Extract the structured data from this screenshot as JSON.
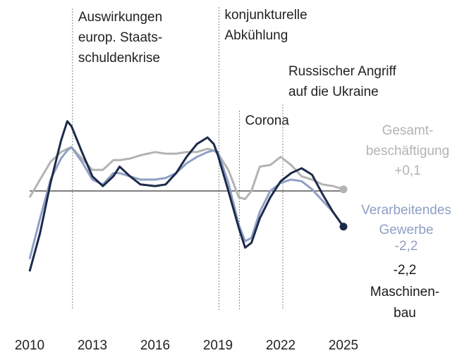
{
  "chart_data": {
    "type": "line",
    "x": [
      2010,
      2010.5,
      2011,
      2011.5,
      2011.8,
      2012,
      2012.5,
      2013,
      2013.5,
      2014,
      2014.3,
      2014.8,
      2015.3,
      2016,
      2016.5,
      2017,
      2017.5,
      2018,
      2018.5,
      2018.8,
      2019,
      2019.5,
      2020,
      2020.3,
      2020.6,
      2021,
      2021.5,
      2022,
      2022.5,
      2023,
      2023.5,
      2024,
      2024.5,
      2025
    ],
    "series": [
      {
        "name": [
          "Gesamt-",
          "beschäftigung"
        ],
        "color": "#b3b3b3",
        "end_label": "+0,1",
        "values": [
          -0.4,
          0.7,
          1.8,
          2.4,
          2.6,
          2.7,
          2.0,
          1.3,
          1.3,
          1.9,
          1.9,
          2.0,
          2.2,
          2.4,
          2.3,
          2.3,
          2.4,
          2.4,
          2.6,
          2.5,
          2.3,
          1.3,
          -0.4,
          -0.5,
          0,
          1.5,
          1.6,
          2.1,
          1.6,
          0.9,
          0.7,
          0.4,
          0.3,
          0.1
        ]
      },
      {
        "name": [
          "Verarbeitendes",
          "Gewerbe"
        ],
        "color": "#8fa0c4",
        "end_label": "-2,2",
        "values": [
          -4.2,
          -1.7,
          0.7,
          2.0,
          2.5,
          2.7,
          1.8,
          0.7,
          0.4,
          1.1,
          1.1,
          0.9,
          0.7,
          0.7,
          0.8,
          1.1,
          1.7,
          2.1,
          2.4,
          2.5,
          2.4,
          0.5,
          -2.1,
          -3.1,
          -2.9,
          -1.3,
          0,
          0.5,
          0.7,
          0.6,
          0.1,
          -0.6,
          -1.3,
          -2.2
        ]
      },
      {
        "name": [
          "Maschinen-",
          "bau"
        ],
        "color": "#1c2a4a",
        "end_label": "-2,2",
        "values": [
          -4.96,
          -2.6,
          0.5,
          3.1,
          4.3,
          4.0,
          2.4,
          0.9,
          0.3,
          0.9,
          1.5,
          0.9,
          0.4,
          0.3,
          0.4,
          1.1,
          2.1,
          2.9,
          3.3,
          2.9,
          2.2,
          0,
          -2.3,
          -3.5,
          -3.2,
          -1.7,
          -0.4,
          0.6,
          1.1,
          1.4,
          1.0,
          -0.2,
          -1.3,
          -2.2
        ]
      }
    ],
    "xlim": [
      2010,
      2025
    ],
    "xticks": [
      2010,
      2013,
      2016,
      2019,
      2022,
      2025
    ],
    "ylim": [
      -5,
      4.5
    ],
    "annotations": [
      {
        "x": 2012.05,
        "text": [
          "Auswirkungen",
          "europ. Staats-",
          "schuldenkrise"
        ]
      },
      {
        "x": 2019.05,
        "text": [
          "konjunkturelle",
          "Abkühlung"
        ]
      },
      {
        "x": 2020.03,
        "text": [
          "Corona"
        ]
      },
      {
        "x": 2022.1,
        "text": [
          "Russischer Angriff",
          "auf die Ukraine"
        ]
      }
    ]
  }
}
